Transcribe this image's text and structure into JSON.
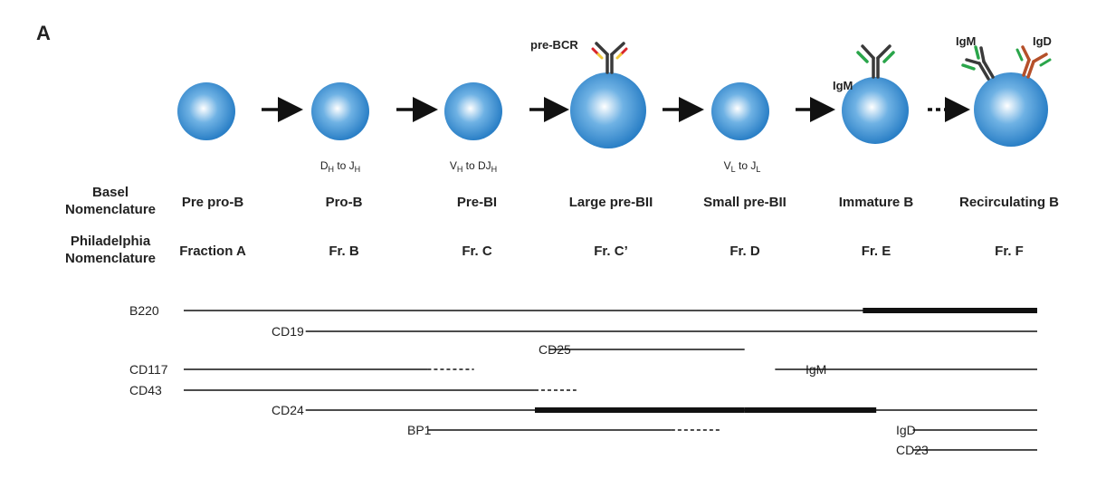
{
  "panel_label": "A",
  "rows": {
    "basel_label": [
      "Basel",
      "Nomenclature"
    ],
    "phila_label": [
      "Philadelphia",
      "Nomenclature"
    ]
  },
  "stages": [
    {
      "basel": "Pre pro-B",
      "phila": "Fraction A",
      "recomb": null
    },
    {
      "basel": "Pro-B",
      "phila": "Fr. B",
      "recomb": {
        "a": "D",
        "a_sub": "H",
        "mid": " to J",
        "b_sub": "H"
      }
    },
    {
      "basel": "Pre-BI",
      "phila": "Fr. C",
      "recomb": {
        "a": "V",
        "a_sub": "H",
        "mid": " to DJ",
        "b_sub": "H"
      }
    },
    {
      "basel": "Large pre-BII",
      "phila": "Fr. C’",
      "recomb": null
    },
    {
      "basel": "Small pre-BII",
      "phila": "Fr. D",
      "recomb": {
        "a": "V",
        "a_sub": "L",
        "mid": " to J",
        "b_sub": "L"
      }
    },
    {
      "basel": "Immature B",
      "phila": "Fr. E",
      "recomb": null
    },
    {
      "basel": "Recirculating B",
      "phila": "Fr. F",
      "recomb": null
    }
  ],
  "receptors": {
    "prebcr": "pre-BCR",
    "igm_immature": "IgM",
    "igm_recirc": "IgM",
    "igd_recirc": "IgD"
  },
  "colors": {
    "cell_edge": "#2a7fc6",
    "cell_mid": "#6fb2e4",
    "cell_center": "#ffffff",
    "heavy_chain": "#3a3a3a",
    "surrogate_red": "#d8262a",
    "surrogate_yellow": "#f1c83a",
    "igm_light": "#2aa54a",
    "igd_heavy": "#b5502a"
  },
  "markers": [
    {
      "label": "B220",
      "solid": [
        [
          0,
          7
        ],
        [
          5.57,
          7
        ]
      ],
      "thick": [
        [
          5.57,
          7
        ]
      ],
      "dashed": []
    },
    {
      "label": "CD19",
      "solid": [
        [
          1,
          7
        ]
      ],
      "thick": [],
      "dashed": []
    },
    {
      "label": "CD25",
      "solid": [
        [
          3,
          4.6
        ]
      ],
      "thick": [],
      "dashed": []
    },
    {
      "label": "CD117",
      "solid": [
        [
          0,
          2
        ]
      ],
      "thick": [],
      "dashed": [
        [
          2,
          2.38
        ]
      ]
    },
    {
      "label": "CD43",
      "solid": [
        [
          0,
          2.88
        ]
      ],
      "thick": [],
      "dashed": [
        [
          2.88,
          3.22
        ]
      ]
    },
    {
      "label": "CD24",
      "solid": [
        [
          1,
          7
        ]
      ],
      "thick": [
        [
          2.88,
          4.6
        ],
        [
          4.6,
          5.68
        ]
      ],
      "dashed": []
    },
    {
      "label": "BP1",
      "solid": [
        [
          2,
          4.0
        ]
      ],
      "thick": [],
      "dashed": [
        [
          4.0,
          4.4
        ]
      ]
    },
    {
      "label": "IgM",
      "solid": [
        [
          4.85,
          7
        ]
      ],
      "thick": [],
      "dashed": []
    },
    {
      "label": "IgD",
      "solid": [
        [
          5.98,
          7
        ]
      ],
      "thick": [],
      "dashed": []
    },
    {
      "label": "CD23",
      "solid": [
        [
          5.98,
          7
        ]
      ],
      "thick": [],
      "dashed": []
    }
  ]
}
